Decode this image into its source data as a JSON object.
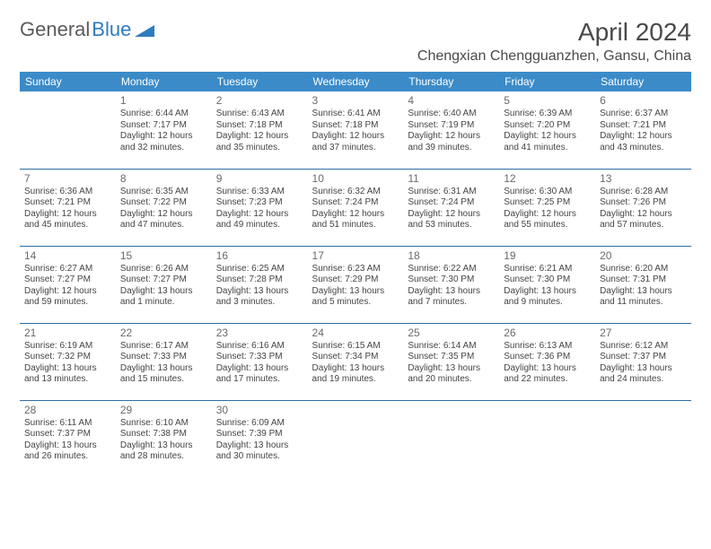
{
  "logo": {
    "part1": "General",
    "part2": "Blue"
  },
  "title": "April 2024",
  "location": "Chengxian Chengguanzhen, Gansu, China",
  "colors": {
    "header_bg": "#3b8bc9",
    "header_text": "#ffffff",
    "rule": "#2f6ea3",
    "logo_gray": "#5a5a5a",
    "logo_blue": "#2f7bbf",
    "body_text": "#444444"
  },
  "day_labels": [
    "Sunday",
    "Monday",
    "Tuesday",
    "Wednesday",
    "Thursday",
    "Friday",
    "Saturday"
  ],
  "weeks": [
    [
      null,
      {
        "n": "1",
        "sr": "Sunrise: 6:44 AM",
        "ss": "Sunset: 7:17 PM",
        "d1": "Daylight: 12 hours",
        "d2": "and 32 minutes."
      },
      {
        "n": "2",
        "sr": "Sunrise: 6:43 AM",
        "ss": "Sunset: 7:18 PM",
        "d1": "Daylight: 12 hours",
        "d2": "and 35 minutes."
      },
      {
        "n": "3",
        "sr": "Sunrise: 6:41 AM",
        "ss": "Sunset: 7:18 PM",
        "d1": "Daylight: 12 hours",
        "d2": "and 37 minutes."
      },
      {
        "n": "4",
        "sr": "Sunrise: 6:40 AM",
        "ss": "Sunset: 7:19 PM",
        "d1": "Daylight: 12 hours",
        "d2": "and 39 minutes."
      },
      {
        "n": "5",
        "sr": "Sunrise: 6:39 AM",
        "ss": "Sunset: 7:20 PM",
        "d1": "Daylight: 12 hours",
        "d2": "and 41 minutes."
      },
      {
        "n": "6",
        "sr": "Sunrise: 6:37 AM",
        "ss": "Sunset: 7:21 PM",
        "d1": "Daylight: 12 hours",
        "d2": "and 43 minutes."
      }
    ],
    [
      {
        "n": "7",
        "sr": "Sunrise: 6:36 AM",
        "ss": "Sunset: 7:21 PM",
        "d1": "Daylight: 12 hours",
        "d2": "and 45 minutes."
      },
      {
        "n": "8",
        "sr": "Sunrise: 6:35 AM",
        "ss": "Sunset: 7:22 PM",
        "d1": "Daylight: 12 hours",
        "d2": "and 47 minutes."
      },
      {
        "n": "9",
        "sr": "Sunrise: 6:33 AM",
        "ss": "Sunset: 7:23 PM",
        "d1": "Daylight: 12 hours",
        "d2": "and 49 minutes."
      },
      {
        "n": "10",
        "sr": "Sunrise: 6:32 AM",
        "ss": "Sunset: 7:24 PM",
        "d1": "Daylight: 12 hours",
        "d2": "and 51 minutes."
      },
      {
        "n": "11",
        "sr": "Sunrise: 6:31 AM",
        "ss": "Sunset: 7:24 PM",
        "d1": "Daylight: 12 hours",
        "d2": "and 53 minutes."
      },
      {
        "n": "12",
        "sr": "Sunrise: 6:30 AM",
        "ss": "Sunset: 7:25 PM",
        "d1": "Daylight: 12 hours",
        "d2": "and 55 minutes."
      },
      {
        "n": "13",
        "sr": "Sunrise: 6:28 AM",
        "ss": "Sunset: 7:26 PM",
        "d1": "Daylight: 12 hours",
        "d2": "and 57 minutes."
      }
    ],
    [
      {
        "n": "14",
        "sr": "Sunrise: 6:27 AM",
        "ss": "Sunset: 7:27 PM",
        "d1": "Daylight: 12 hours",
        "d2": "and 59 minutes."
      },
      {
        "n": "15",
        "sr": "Sunrise: 6:26 AM",
        "ss": "Sunset: 7:27 PM",
        "d1": "Daylight: 13 hours",
        "d2": "and 1 minute."
      },
      {
        "n": "16",
        "sr": "Sunrise: 6:25 AM",
        "ss": "Sunset: 7:28 PM",
        "d1": "Daylight: 13 hours",
        "d2": "and 3 minutes."
      },
      {
        "n": "17",
        "sr": "Sunrise: 6:23 AM",
        "ss": "Sunset: 7:29 PM",
        "d1": "Daylight: 13 hours",
        "d2": "and 5 minutes."
      },
      {
        "n": "18",
        "sr": "Sunrise: 6:22 AM",
        "ss": "Sunset: 7:30 PM",
        "d1": "Daylight: 13 hours",
        "d2": "and 7 minutes."
      },
      {
        "n": "19",
        "sr": "Sunrise: 6:21 AM",
        "ss": "Sunset: 7:30 PM",
        "d1": "Daylight: 13 hours",
        "d2": "and 9 minutes."
      },
      {
        "n": "20",
        "sr": "Sunrise: 6:20 AM",
        "ss": "Sunset: 7:31 PM",
        "d1": "Daylight: 13 hours",
        "d2": "and 11 minutes."
      }
    ],
    [
      {
        "n": "21",
        "sr": "Sunrise: 6:19 AM",
        "ss": "Sunset: 7:32 PM",
        "d1": "Daylight: 13 hours",
        "d2": "and 13 minutes."
      },
      {
        "n": "22",
        "sr": "Sunrise: 6:17 AM",
        "ss": "Sunset: 7:33 PM",
        "d1": "Daylight: 13 hours",
        "d2": "and 15 minutes."
      },
      {
        "n": "23",
        "sr": "Sunrise: 6:16 AM",
        "ss": "Sunset: 7:33 PM",
        "d1": "Daylight: 13 hours",
        "d2": "and 17 minutes."
      },
      {
        "n": "24",
        "sr": "Sunrise: 6:15 AM",
        "ss": "Sunset: 7:34 PM",
        "d1": "Daylight: 13 hours",
        "d2": "and 19 minutes."
      },
      {
        "n": "25",
        "sr": "Sunrise: 6:14 AM",
        "ss": "Sunset: 7:35 PM",
        "d1": "Daylight: 13 hours",
        "d2": "and 20 minutes."
      },
      {
        "n": "26",
        "sr": "Sunrise: 6:13 AM",
        "ss": "Sunset: 7:36 PM",
        "d1": "Daylight: 13 hours",
        "d2": "and 22 minutes."
      },
      {
        "n": "27",
        "sr": "Sunrise: 6:12 AM",
        "ss": "Sunset: 7:37 PM",
        "d1": "Daylight: 13 hours",
        "d2": "and 24 minutes."
      }
    ],
    [
      {
        "n": "28",
        "sr": "Sunrise: 6:11 AM",
        "ss": "Sunset: 7:37 PM",
        "d1": "Daylight: 13 hours",
        "d2": "and 26 minutes."
      },
      {
        "n": "29",
        "sr": "Sunrise: 6:10 AM",
        "ss": "Sunset: 7:38 PM",
        "d1": "Daylight: 13 hours",
        "d2": "and 28 minutes."
      },
      {
        "n": "30",
        "sr": "Sunrise: 6:09 AM",
        "ss": "Sunset: 7:39 PM",
        "d1": "Daylight: 13 hours",
        "d2": "and 30 minutes."
      },
      null,
      null,
      null,
      null
    ]
  ]
}
